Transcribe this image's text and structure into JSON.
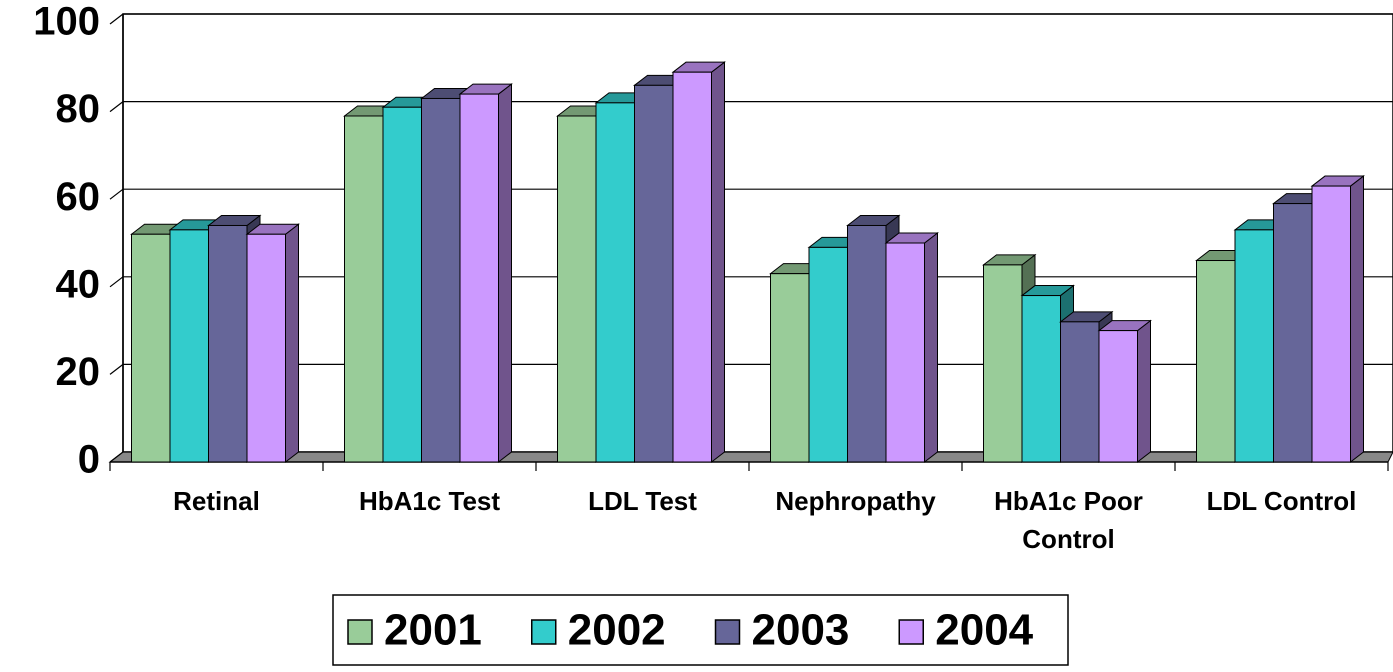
{
  "chart_data": {
    "type": "bar3d",
    "categories": [
      "Retinal",
      "HbA1c Test",
      "LDL Test",
      "Nephropathy",
      "HbA1c Poor Control",
      "LDL Control"
    ],
    "series": [
      {
        "name": "2001",
        "color": "#99cc99",
        "values": [
          52,
          79,
          79,
          43,
          45,
          46
        ]
      },
      {
        "name": "2002",
        "color": "#33cccc",
        "values": [
          53,
          81,
          82,
          49,
          38,
          53
        ]
      },
      {
        "name": "2003",
        "color": "#666699",
        "values": [
          54,
          83,
          86,
          54,
          32,
          59
        ]
      },
      {
        "name": "2004",
        "color": "#cc99ff",
        "values": [
          52,
          84,
          89,
          50,
          30,
          63
        ]
      }
    ],
    "ylim": [
      0,
      100
    ],
    "yticks": [
      0,
      20,
      40,
      60,
      80,
      100
    ],
    "grid": true,
    "legend": "bottom"
  }
}
